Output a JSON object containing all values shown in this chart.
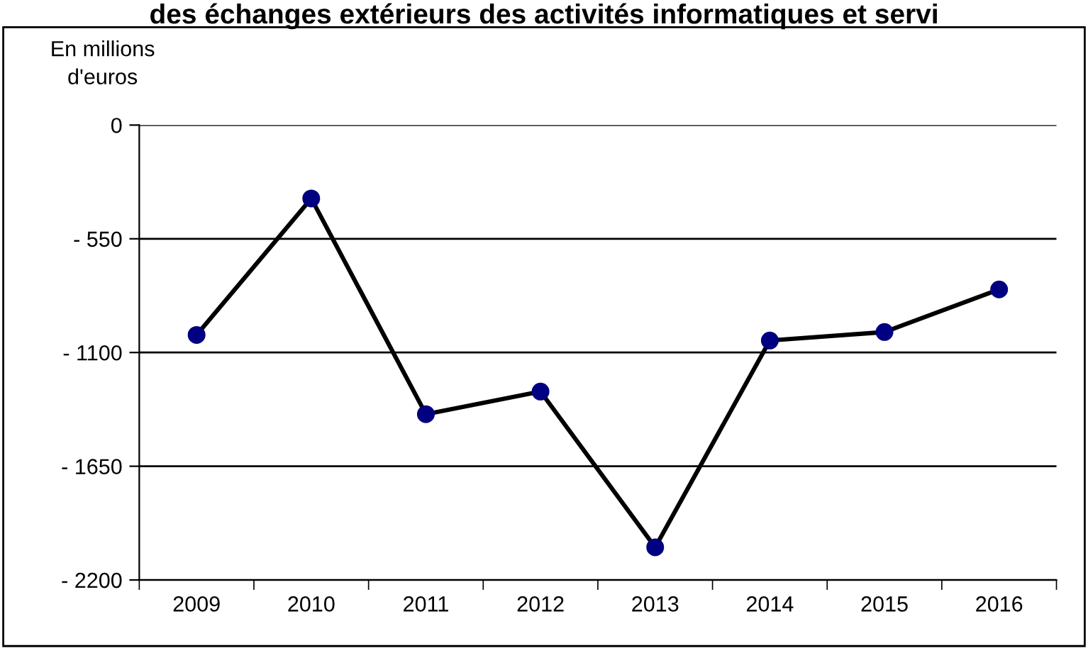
{
  "chart_data": {
    "type": "line",
    "title": "des échanges extérieurs des activités informatiques et servi",
    "ylabel": "En millions\nd'euros",
    "categories": [
      "2009",
      "2010",
      "2011",
      "2012",
      "2013",
      "2014",
      "2015",
      "2016"
    ],
    "series": [
      {
        "color": "#000080",
        "values": [
          -1015,
          -355,
          -1398,
          -1289,
          -2042,
          -1042,
          -1001,
          -795
        ]
      }
    ],
    "ylim": [
      -2200,
      0
    ],
    "yticks": [
      {
        "value": -2200,
        "label": "- 2200"
      },
      {
        "value": -1650,
        "label": "- 1650"
      },
      {
        "value": -1100,
        "label": "- 1100"
      },
      {
        "value": -550,
        "label": "- 550"
      },
      0
    ],
    "grid": "y",
    "marker": "circle",
    "line_style": "solid",
    "legend": false
  }
}
